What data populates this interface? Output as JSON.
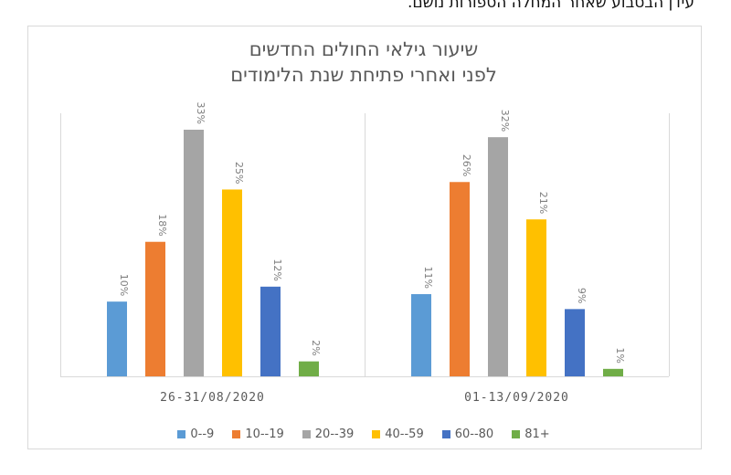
{
  "page_top_text": "עידן הבטבוע שאחר המחלה הספורות נושם.",
  "chart_data": {
    "type": "bar",
    "title_lines": [
      "שיעור גילאי החולים החדשים",
      "לפני ואחרי פתיחת שנת הלימודים"
    ],
    "groups": [
      "26-31/08/2020",
      "01-13/09/2020"
    ],
    "series": [
      {
        "name": "0--9",
        "color": "#5B9BD5",
        "values": [
          10,
          11
        ]
      },
      {
        "name": "10--19",
        "color": "#ED7D31",
        "values": [
          18,
          26
        ]
      },
      {
        "name": "20--39",
        "color": "#A5A5A5",
        "values": [
          33,
          32
        ]
      },
      {
        "name": "40--59",
        "color": "#FFC000",
        "values": [
          25,
          21
        ]
      },
      {
        "name": "60--80",
        "color": "#4472C4",
        "values": [
          12,
          9
        ]
      },
      {
        "name": "81+",
        "color": "#70AD47",
        "values": [
          2,
          1
        ]
      }
    ],
    "value_suffix": "%",
    "ylim": [
      0,
      33
    ],
    "legend_position": "bottom",
    "grid": false
  }
}
